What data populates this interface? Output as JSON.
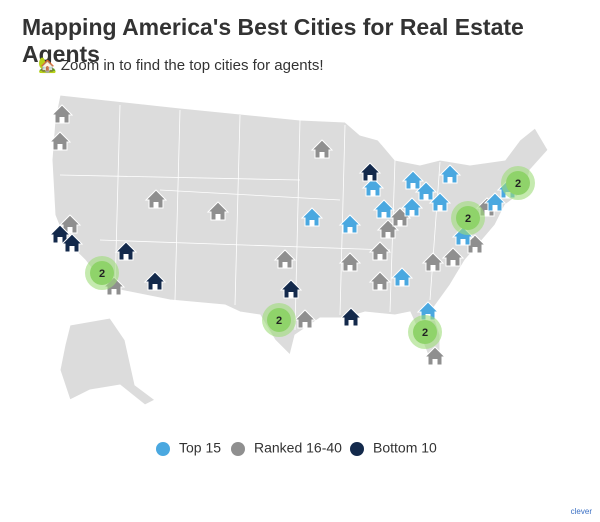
{
  "title": "Mapping America's Best Cities for Real Estate Agents",
  "subtitle": "🏡 Zoom in to find the top cities for agents!",
  "legend": [
    {
      "label": "Top 15",
      "color": "#4aa8e0"
    },
    {
      "label": "Ranked 16-40",
      "color": "#8f8f8f"
    },
    {
      "label": "Bottom 10",
      "color": "#13294b"
    }
  ],
  "clusters": [
    2,
    2,
    2,
    2,
    2
  ],
  "logo": "clever"
}
